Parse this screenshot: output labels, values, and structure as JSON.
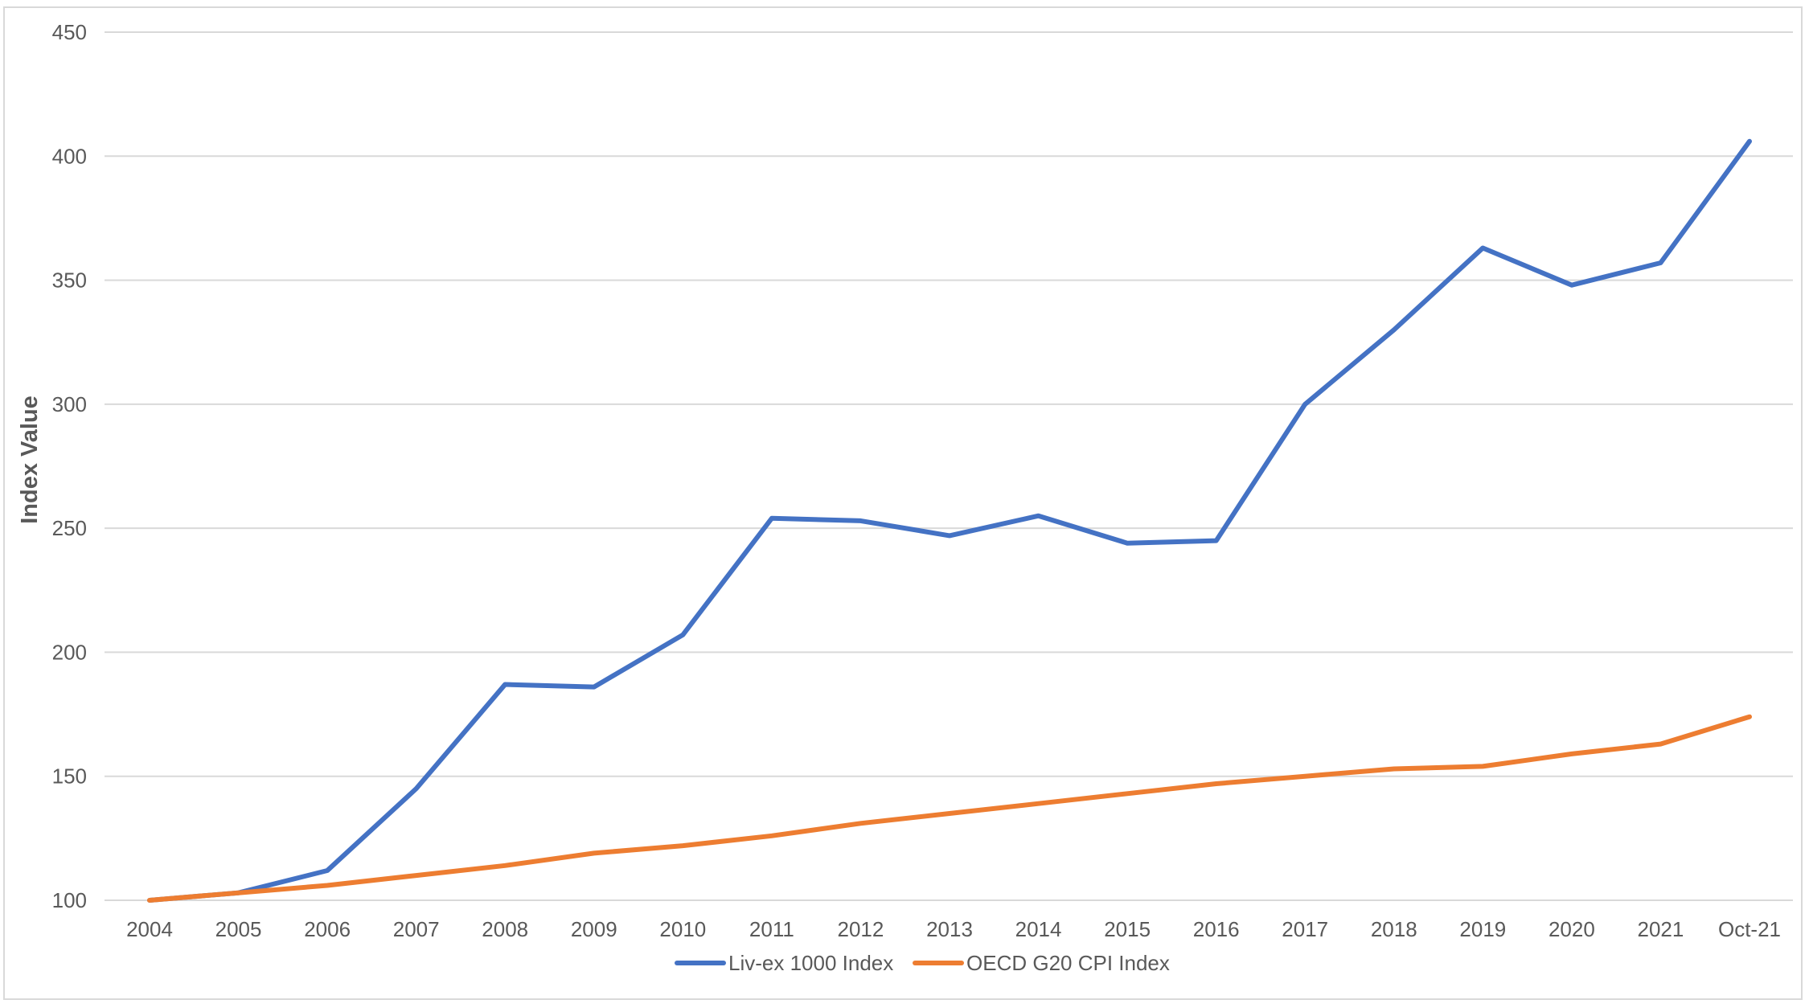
{
  "chart_data": {
    "type": "line",
    "title": "",
    "xlabel": "",
    "ylabel": "Index Value",
    "ylim": [
      100,
      450
    ],
    "yticks": [
      100,
      150,
      200,
      250,
      300,
      350,
      400,
      450
    ],
    "categories": [
      "2004",
      "2005",
      "2006",
      "2007",
      "2008",
      "2009",
      "2010",
      "2011",
      "2012",
      "2013",
      "2014",
      "2015",
      "2016",
      "2017",
      "2018",
      "2019",
      "2020",
      "2021",
      "Oct-21"
    ],
    "grid": "horizontal",
    "legend_position": "bottom",
    "series": [
      {
        "name": "Liv-ex 1000 Index",
        "color": "#4472c4",
        "values": [
          100,
          103,
          112,
          145,
          187,
          186,
          207,
          254,
          253,
          247,
          255,
          244,
          245,
          300,
          330,
          363,
          348,
          357,
          406
        ]
      },
      {
        "name": "OECD G20 CPI Index",
        "color": "#ed7d31",
        "values": [
          100,
          103,
          106,
          110,
          114,
          119,
          122,
          126,
          131,
          135,
          139,
          143,
          147,
          150,
          153,
          154,
          159,
          163,
          174
        ]
      }
    ]
  }
}
